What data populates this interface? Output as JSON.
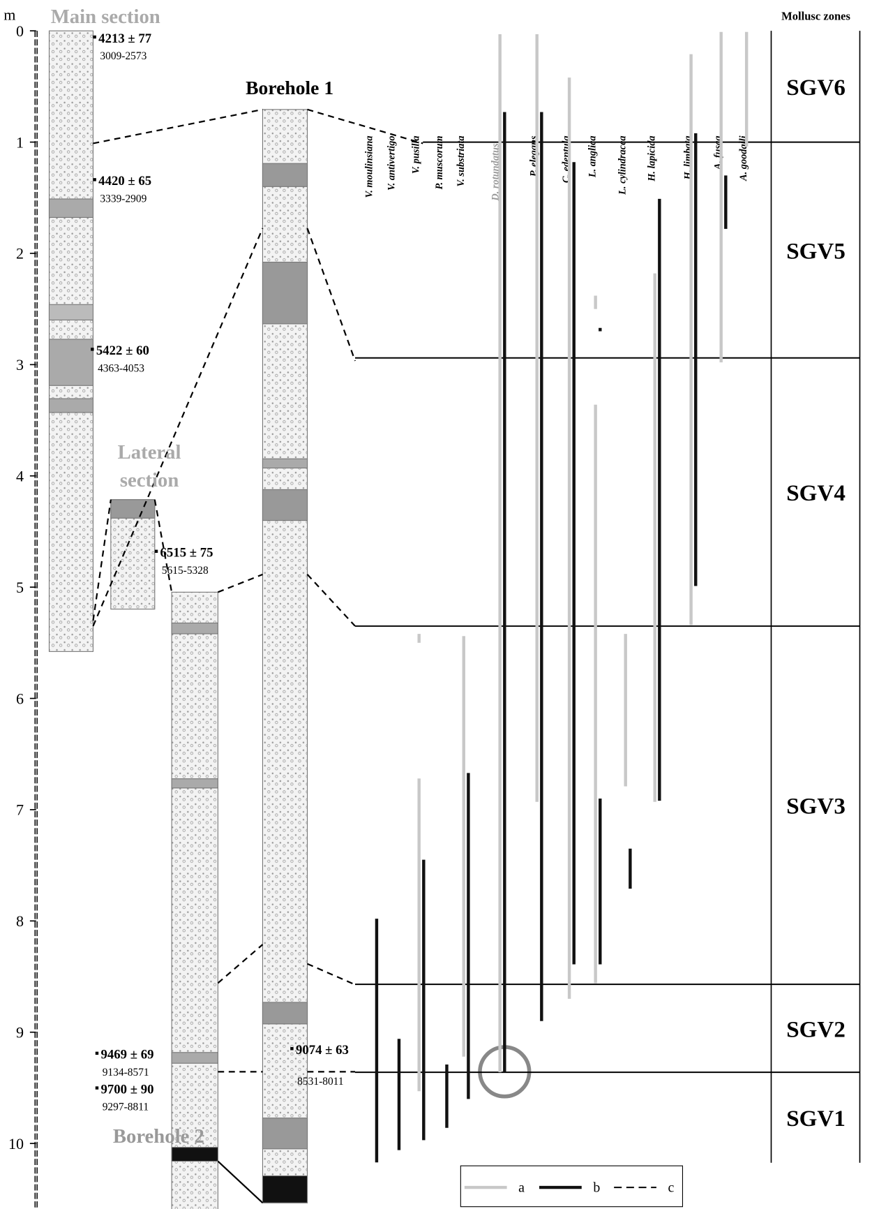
{
  "axis": {
    "unit": "m",
    "ticks": [
      0,
      1,
      2,
      3,
      4,
      5,
      6,
      7,
      8,
      9,
      10
    ]
  },
  "sections": [
    {
      "label": "Main section"
    },
    {
      "label": "Lateral section"
    },
    {
      "label": "Borehole 2"
    },
    {
      "label": "Borehole 1"
    }
  ],
  "dates": [
    {
      "age": "4213 ± 77",
      "range": "3009-2573"
    },
    {
      "age": "4420 ± 65",
      "range": "3339-2909"
    },
    {
      "age": "5422 ± 60",
      "range": "4363-4053"
    },
    {
      "age": "6515 ± 75",
      "range": "5615-5328"
    },
    {
      "age": "9469 ± 69",
      "range": "9134-8571"
    },
    {
      "age": "9700 ± 90",
      "range": "9297-8811"
    },
    {
      "age": "9074 ± 63",
      "range": "8531-8011"
    }
  ],
  "zones_header": "Mollusc zones",
  "taxa": [
    {
      "name": "V. moulinsiana",
      "a": [],
      "b": [
        [
          7.98,
          10.17
        ]
      ]
    },
    {
      "name": "V. antivertigo",
      "a": [],
      "b": [
        [
          9.06,
          10.06
        ]
      ]
    },
    {
      "name": "V. pusilla",
      "a": [
        [
          5.42,
          5.5
        ],
        [
          6.72,
          9.53
        ]
      ],
      "b": [
        [
          7.45,
          9.97
        ]
      ]
    },
    {
      "name": "P. muscorum",
      "a": [],
      "b": [
        [
          9.29,
          9.86
        ]
      ]
    },
    {
      "name": "V. substriata",
      "a": [
        [
          5.44,
          9.22
        ]
      ],
      "b": [
        [
          6.67,
          9.6
        ]
      ]
    },
    {
      "name": "D. rotundatus",
      "a": [
        [
          0.03,
          9.36
        ]
      ],
      "b": [
        [
          0.73,
          9.36
        ]
      ]
    },
    {
      "name": "P. elegans",
      "a": [
        [
          0.03,
          6.93
        ]
      ],
      "b": [
        [
          0.73,
          8.9
        ]
      ]
    },
    {
      "name": "C. edentula",
      "a": [
        [
          0.42,
          8.7
        ]
      ],
      "b": [
        [
          1.18,
          8.39
        ]
      ]
    },
    {
      "name": "L. anglica",
      "a": [
        [
          2.38,
          2.5
        ],
        [
          3.36,
          8.56
        ]
      ],
      "b": [
        [
          2.67,
          2.7
        ],
        [
          6.9,
          8.39
        ]
      ]
    },
    {
      "name": "L. cylindracea",
      "a": [
        [
          5.42,
          6.79
        ]
      ],
      "b": [
        [
          7.35,
          7.71
        ]
      ]
    },
    {
      "name": "H. lapicida",
      "a": [
        [
          2.18,
          6.93
        ]
      ],
      "b": [
        [
          1.51,
          6.92
        ]
      ]
    },
    {
      "name": "H. limbata",
      "a": [
        [
          0.21,
          5.34
        ]
      ],
      "b": [
        [
          0.92,
          4.99
        ]
      ]
    },
    {
      "name": "A. fusca",
      "a": [
        [
          0.01,
          2.98
        ]
      ],
      "b": [
        [
          1.3,
          1.78
        ]
      ]
    },
    {
      "name": "A. goodalli",
      "a": [
        [
          0.01,
          1.04
        ]
      ],
      "b": []
    }
  ],
  "zones": [
    "SGV6",
    "SGV5",
    "SGV4",
    "SGV3",
    "SGV2",
    "SGV1"
  ],
  "zone_boundaries": [
    1.0,
    2.94,
    5.35,
    8.57,
    9.36
  ],
  "legend": [
    "a",
    "b",
    "c"
  ]
}
